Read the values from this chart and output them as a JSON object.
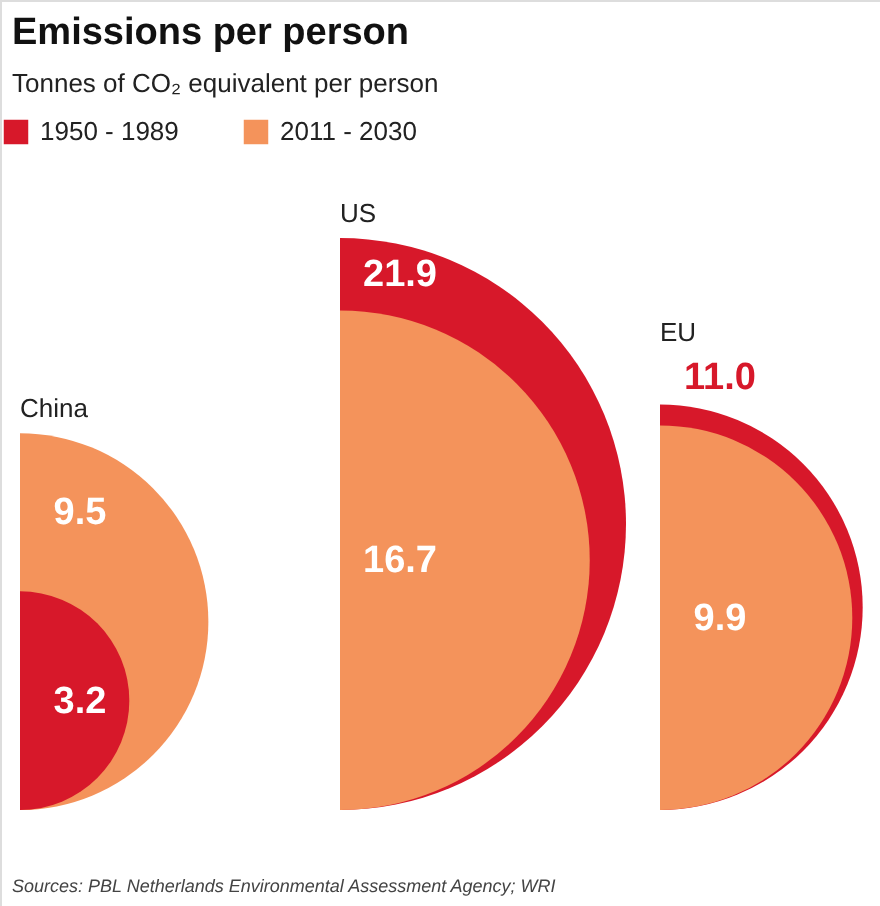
{
  "chart_data": {
    "type": "other",
    "title": "Emissions per person",
    "subtitle": "Tonnes of CO₂ equivalent per person",
    "categories": [
      "China",
      "US",
      "EU"
    ],
    "series": [
      {
        "name": "1950 - 1989",
        "color": "#d7182a",
        "values": [
          3.2,
          21.9,
          11.0
        ],
        "value_labels": [
          "3.2",
          "21.9",
          "11.0"
        ]
      },
      {
        "name": "2011 - 2030",
        "color": "#f4935b",
        "values": [
          9.5,
          16.7,
          9.9
        ],
        "value_labels": [
          "9.5",
          "16.7",
          "9.9"
        ]
      }
    ],
    "legend": "top left",
    "annotations": [
      "Sources: PBL Netherlands Environmental Assessment Agency; WRI"
    ]
  }
}
